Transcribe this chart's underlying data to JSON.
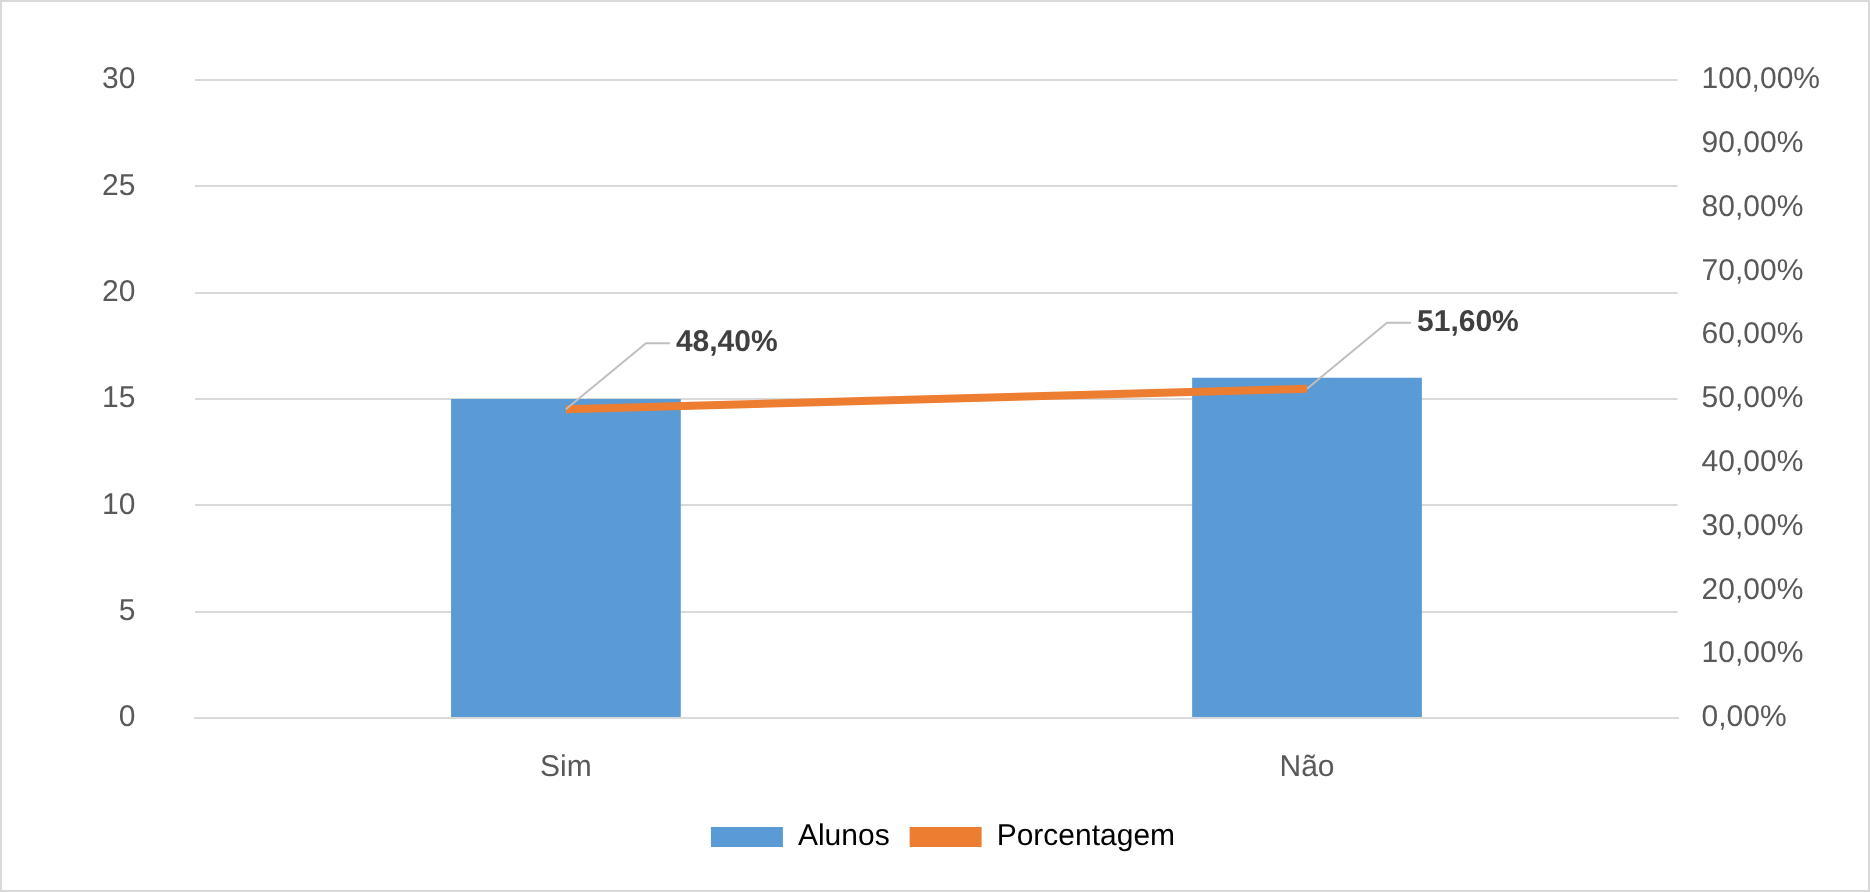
{
  "chart_data": {
    "type": "bar",
    "categories": [
      "Sim",
      "Não"
    ],
    "series": [
      {
        "name": "Alunos",
        "color": "#5b9bd5",
        "values": [
          15,
          16
        ]
      },
      {
        "name": "Porcentagem",
        "type": "line",
        "axis": "y2",
        "color": "#ed7d31",
        "values": [
          48.4,
          51.6
        ],
        "value_labels": [
          "48,40%",
          "51,60%"
        ]
      }
    ],
    "ylim": [
      0,
      30
    ],
    "yticks": [
      0,
      5,
      10,
      15,
      20,
      25,
      30
    ],
    "y2lim": [
      0,
      100
    ],
    "y2ticks": [
      {
        "value": 0,
        "label": "0,00%"
      },
      {
        "value": 10,
        "label": "10,00%"
      },
      {
        "value": 20,
        "label": "20,00%"
      },
      {
        "value": 30,
        "label": "30,00%"
      },
      {
        "value": 40,
        "label": "40,00%"
      },
      {
        "value": 50,
        "label": "50,00%"
      },
      {
        "value": 60,
        "label": "60,00%"
      },
      {
        "value": 70,
        "label": "70,00%"
      },
      {
        "value": 80,
        "label": "80,00%"
      },
      {
        "value": 90,
        "label": "90,00%"
      },
      {
        "value": 100,
        "label": "100,00%"
      }
    ],
    "grid": "y",
    "legend": "bottom",
    "marker": "none",
    "line_style": "solid"
  }
}
